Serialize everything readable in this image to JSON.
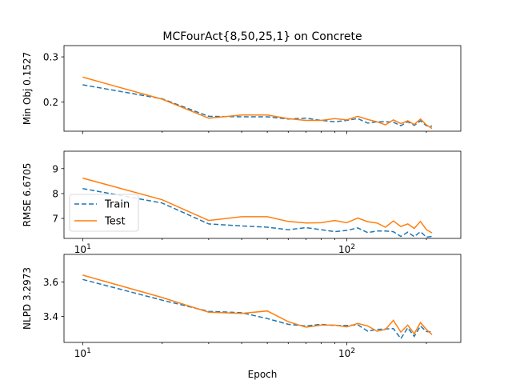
{
  "chart_data": {
    "title": "MCFourAct{8,50,25,1} on Concrete",
    "type": "line",
    "xlabel": "Epoch",
    "x_scale": "log",
    "xlim": [
      8.5,
      270
    ],
    "x_major_ticks": [
      10,
      100
    ],
    "x_minor_ticks": [
      20,
      30,
      40,
      50,
      60,
      70,
      80,
      90,
      200
    ],
    "x": [
      10,
      20,
      30,
      40,
      50,
      60,
      70,
      80,
      90,
      100,
      110,
      120,
      130,
      140,
      150,
      160,
      170,
      180,
      190,
      200,
      210
    ],
    "series_styles": [
      {
        "name": "Train",
        "color": "#1f77b4",
        "dash": "6,3"
      },
      {
        "name": "Test",
        "color": "#ff7f0e",
        "dash": ""
      }
    ],
    "legend": {
      "location": "lower left",
      "panel": 1,
      "entries": [
        "Train",
        "Test"
      ]
    },
    "panels": [
      {
        "ylabel": "Min Obj 0.1527",
        "ylim": [
          0.135,
          0.325
        ],
        "yticks": [
          0.2,
          0.3
        ],
        "ytick_labels": [
          "0.2",
          "0.3"
        ],
        "show_xtick_labels": false,
        "series": [
          {
            "name": "Train",
            "values": [
              0.238,
              0.207,
              0.168,
              0.167,
              0.167,
              0.162,
              0.164,
              0.159,
              0.156,
              0.159,
              0.163,
              0.153,
              0.156,
              0.156,
              0.155,
              0.147,
              0.156,
              0.148,
              0.158,
              0.147,
              0.146
            ]
          },
          {
            "name": "Test",
            "values": [
              0.255,
              0.206,
              0.164,
              0.171,
              0.171,
              0.163,
              0.159,
              0.159,
              0.163,
              0.16,
              0.168,
              0.161,
              0.156,
              0.149,
              0.16,
              0.152,
              0.158,
              0.15,
              0.162,
              0.149,
              0.141
            ]
          }
        ]
      },
      {
        "ylabel": "RMSE 6.6705",
        "ylim": [
          6.2,
          9.7
        ],
        "yticks": [
          7,
          8,
          9
        ],
        "ytick_labels": [
          "7",
          "8",
          "9"
        ],
        "show_xtick_labels": true,
        "series": [
          {
            "name": "Train",
            "values": [
              8.2,
              7.62,
              6.78,
              6.7,
              6.65,
              6.55,
              6.63,
              6.55,
              6.47,
              6.52,
              6.62,
              6.43,
              6.5,
              6.5,
              6.47,
              6.28,
              6.45,
              6.27,
              6.47,
              6.25,
              6.28
            ]
          },
          {
            "name": "Test",
            "values": [
              8.62,
              7.75,
              6.92,
              7.07,
              7.07,
              6.88,
              6.82,
              6.83,
              6.92,
              6.83,
              7.02,
              6.87,
              6.82,
              6.65,
              6.9,
              6.68,
              6.78,
              6.6,
              6.88,
              6.55,
              6.42
            ]
          }
        ]
      },
      {
        "ylabel": "NLPD 3.2973",
        "ylim": [
          3.25,
          3.76
        ],
        "yticks": [
          3.4,
          3.6
        ],
        "ytick_labels": [
          "3.4",
          "3.6"
        ],
        "show_xtick_labels": true,
        "series": [
          {
            "name": "Train",
            "values": [
              3.615,
              3.495,
              3.43,
              3.422,
              3.388,
              3.355,
              3.345,
              3.355,
              3.348,
              3.348,
              3.352,
              3.315,
              3.325,
              3.328,
              3.33,
              3.272,
              3.335,
              3.285,
              3.345,
              3.313,
              3.31
            ]
          },
          {
            "name": "Test",
            "values": [
              3.64,
              3.51,
              3.425,
              3.418,
              3.432,
              3.37,
              3.338,
              3.35,
              3.35,
              3.34,
              3.36,
              3.345,
              3.315,
              3.325,
              3.378,
              3.31,
              3.35,
              3.3,
              3.365,
              3.325,
              3.295
            ]
          }
        ]
      }
    ]
  }
}
